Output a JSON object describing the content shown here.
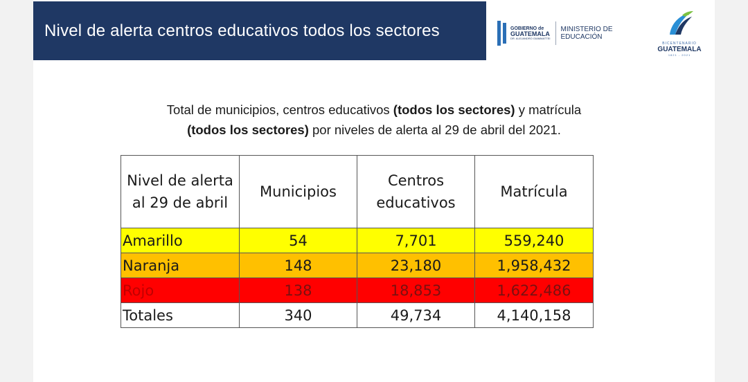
{
  "header": {
    "title": "Nivel de alerta centros educativos todos los sectores"
  },
  "logos": {
    "gobierno_small": "GOBIERNO de",
    "gobierno_big": "GUATEMALA",
    "gobierno_tiny": "DR. ALEJANDRO GIAMMATTEI",
    "ministerio_line1": "MINISTERIO DE",
    "ministerio_line2": "EDUCACIÓN",
    "bicentenario_word": "BICENTENARIO",
    "bicentenario_name": "GUATEMALA",
    "bicentenario_years": "1821 - 2021"
  },
  "subtitle": {
    "p1": "Total de municipios, centros educativos ",
    "b1": "(todos los sectores)",
    "p2": " y matrícula",
    "b2": "(todos los sectores)",
    "p3": " por niveles de alerta al 29 de abril del 2021."
  },
  "table": {
    "headers": {
      "nivel_line1": "Nivel de alerta",
      "nivel_line2": "al 29 de abril",
      "municipios": "Municipios",
      "centros_line1": "Centros",
      "centros_line2": "educativos",
      "matricula": "Matrícula"
    },
    "rows": [
      {
        "nivel": "Amarillo",
        "municipios": "54",
        "centros": "7,701",
        "matricula": "559,240"
      },
      {
        "nivel": "Naranja",
        "municipios": "148",
        "centros": "23,180",
        "matricula": "1,958,432"
      },
      {
        "nivel": "Rojo",
        "municipios": "138",
        "centros": "18,853",
        "matricula": "1,622,486"
      },
      {
        "nivel": "Totales",
        "municipios": "340",
        "centros": "49,734",
        "matricula": "4,140,158"
      }
    ]
  },
  "colors": {
    "header_bg": "#1f3864",
    "amarillo": "#ffff00",
    "naranja": "#ffc000",
    "rojo": "#ff0000"
  }
}
